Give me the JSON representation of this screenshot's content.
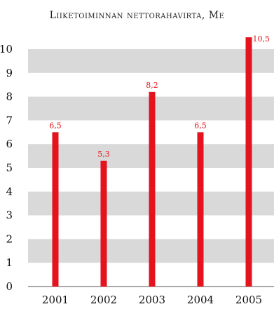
{
  "chart_data": {
    "type": "bar",
    "title": "Liiketoiminnan nettorahavirta, Me",
    "categories": [
      "2001",
      "2002",
      "2003",
      "2004",
      "2005"
    ],
    "values": [
      6.5,
      5.3,
      8.2,
      6.5,
      10.5
    ],
    "value_labels": [
      "6,5",
      "5,3",
      "8,2",
      "6,5",
      "10,5"
    ],
    "y_ticks": [
      "0",
      "1",
      "2",
      "3",
      "4",
      "5",
      "6",
      "7",
      "8",
      "9",
      "10"
    ],
    "ylim": [
      0,
      10.5
    ],
    "grid": "alternating horizontal bands",
    "colors": {
      "bar": "#e3141e",
      "band": "#d9d9d9",
      "label": "#e3141e"
    }
  }
}
